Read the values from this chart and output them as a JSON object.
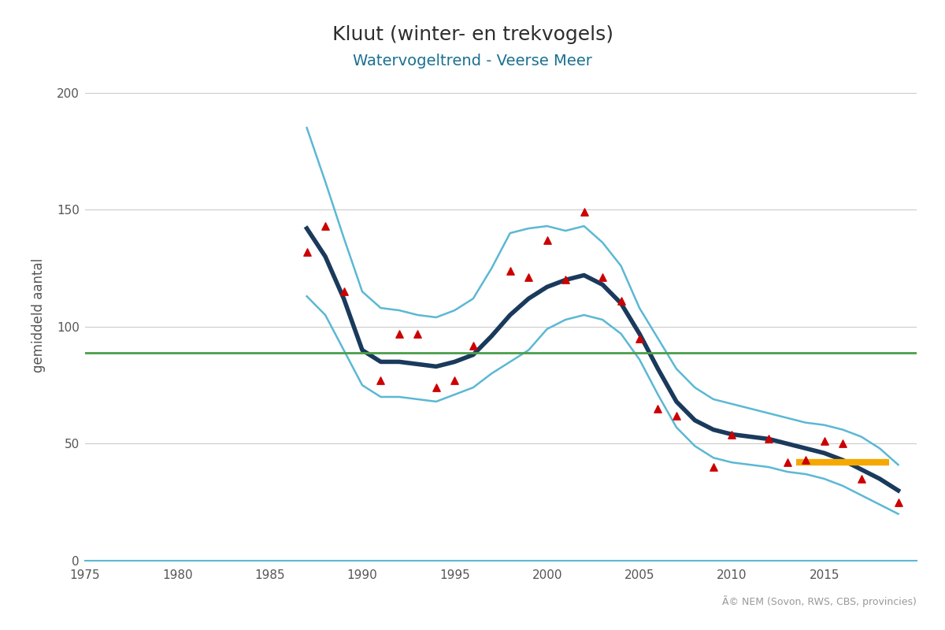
{
  "title": "Kluut (winter- en trekvogels)",
  "subtitle": "Watervogeltrend - Veerse Meer",
  "ylabel": "gemiddeld aantal",
  "xlim": [
    1975,
    2020
  ],
  "ylim": [
    0,
    210
  ],
  "yticks": [
    0,
    50,
    100,
    150,
    200
  ],
  "xticks": [
    1975,
    1980,
    1985,
    1990,
    1995,
    2000,
    2005,
    2010,
    2015
  ],
  "background_color": "#ffffff",
  "grid_color": "#cccccc",
  "copyright_text": "Ã© NEM (Sovon, RWS, CBS, provincies)",
  "scatter_x": [
    1987,
    1988,
    1989,
    1991,
    1992,
    1993,
    1994,
    1995,
    1996,
    1998,
    1999,
    2000,
    2001,
    2002,
    2003,
    2004,
    2005,
    2006,
    2007,
    2009,
    2010,
    2012,
    2013,
    2014,
    2015,
    2016,
    2017,
    2019
  ],
  "scatter_y": [
    132,
    143,
    115,
    77,
    97,
    97,
    74,
    77,
    92,
    124,
    121,
    137,
    120,
    149,
    121,
    111,
    95,
    65,
    62,
    40,
    54,
    52,
    42,
    43,
    51,
    50,
    35,
    25
  ],
  "trend_x": [
    1987,
    1988,
    1989,
    1990,
    1991,
    1992,
    1993,
    1994,
    1995,
    1996,
    1997,
    1998,
    1999,
    2000,
    2001,
    2002,
    2003,
    2004,
    2005,
    2006,
    2007,
    2008,
    2009,
    2010,
    2011,
    2012,
    2013,
    2014,
    2015,
    2016,
    2017,
    2018,
    2019
  ],
  "trend_y": [
    142,
    130,
    112,
    90,
    85,
    85,
    84,
    83,
    85,
    88,
    96,
    105,
    112,
    117,
    120,
    122,
    118,
    110,
    97,
    82,
    68,
    60,
    56,
    54,
    53,
    52,
    50,
    48,
    46,
    43,
    39,
    35,
    30
  ],
  "upper_ci_x": [
    1987,
    1988,
    1989,
    1990,
    1991,
    1992,
    1993,
    1994,
    1995,
    1996,
    1997,
    1998,
    1999,
    2000,
    2001,
    2002,
    2003,
    2004,
    2005,
    2006,
    2007,
    2008,
    2009,
    2010,
    2011,
    2012,
    2013,
    2014,
    2015,
    2016,
    2017,
    2018,
    2019
  ],
  "upper_ci_y": [
    185,
    162,
    138,
    115,
    108,
    107,
    105,
    104,
    107,
    112,
    125,
    140,
    142,
    143,
    141,
    143,
    136,
    126,
    108,
    95,
    82,
    74,
    69,
    67,
    65,
    63,
    61,
    59,
    58,
    56,
    53,
    48,
    41
  ],
  "lower_ci_x": [
    1987,
    1988,
    1989,
    1990,
    1991,
    1992,
    1993,
    1994,
    1995,
    1996,
    1997,
    1998,
    1999,
    2000,
    2001,
    2002,
    2003,
    2004,
    2005,
    2006,
    2007,
    2008,
    2009,
    2010,
    2011,
    2012,
    2013,
    2014,
    2015,
    2016,
    2017,
    2018,
    2019
  ],
  "lower_ci_y": [
    113,
    105,
    90,
    75,
    70,
    70,
    69,
    68,
    71,
    74,
    80,
    85,
    90,
    99,
    103,
    105,
    103,
    97,
    86,
    71,
    57,
    49,
    44,
    42,
    41,
    40,
    38,
    37,
    35,
    32,
    28,
    24,
    20
  ],
  "ref_line_y": 89,
  "ref_line_color": "#4a9e4a",
  "orange_line_x": [
    2013.5,
    2018.5
  ],
  "orange_line_y": [
    42,
    42
  ],
  "orange_line_color": "#f5a800",
  "trend_color": "#1a3a5c",
  "ci_color": "#5bb8d4",
  "scatter_color": "#cc0000",
  "title_color": "#2d2d2d",
  "subtitle_color": "#1a7090"
}
